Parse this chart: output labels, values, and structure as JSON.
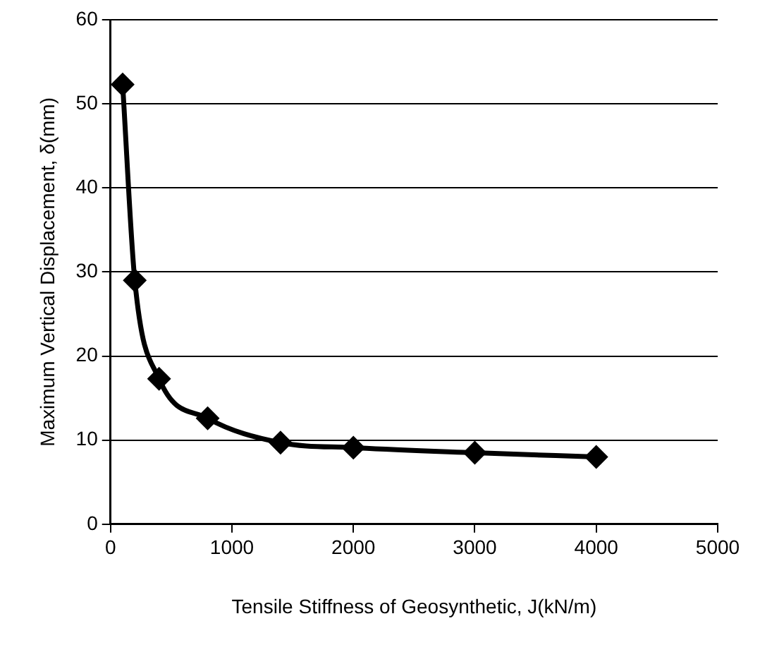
{
  "chart_data": {
    "type": "line",
    "xlabel": "Tensile Stiffness of Geosynthetic, J(kN/m)",
    "ylabel": "Maximum Vertical Displacement, δ(mm)",
    "x": [
      100,
      200,
      400,
      800,
      1400,
      2000,
      3000,
      4000
    ],
    "series": [
      {
        "color": "#000000",
        "values": [
          52.3,
          29,
          17.3,
          12.6,
          9.7,
          9.1,
          8.5,
          8.0
        ]
      }
    ],
    "xlim": [
      0,
      5000
    ],
    "xticks": [
      0,
      1000,
      2000,
      3000,
      4000,
      5000
    ],
    "ylim": [
      0,
      60
    ],
    "yticks": [
      0,
      10,
      20,
      30,
      40,
      50,
      60
    ],
    "grid": "y",
    "legend": false,
    "marker": "diamond",
    "line_style": "solid"
  }
}
